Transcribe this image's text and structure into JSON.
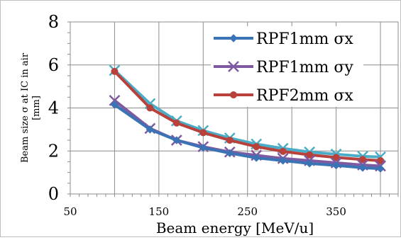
{
  "chart_data": {
    "type": "line",
    "xlabel": "Beam energy [MeV/u]",
    "ylabel": "Beam size  σ  at IC in air [mm]",
    "xlim": [
      50,
      420
    ],
    "ylim": [
      0,
      8
    ],
    "x_ticks": [
      50,
      150,
      250,
      350
    ],
    "y_ticks": [
      0,
      2,
      4,
      6,
      8
    ],
    "grid": true,
    "legend_position": "top-right",
    "x": [
      100,
      140,
      170,
      200,
      230,
      260,
      290,
      320,
      350,
      380,
      400
    ],
    "series": [
      {
        "name": "RPF1mm σx",
        "color": "#3b74b5",
        "marker": "diamond",
        "values": [
          4.15,
          3.0,
          2.5,
          2.15,
          1.9,
          1.68,
          1.55,
          1.42,
          1.33,
          1.22,
          1.18
        ]
      },
      {
        "name": "RPF1mm σy",
        "color": "#7e5aa2",
        "marker": "x",
        "values": [
          4.35,
          3.05,
          2.5,
          2.2,
          1.95,
          1.8,
          1.65,
          1.55,
          1.45,
          1.35,
          1.3
        ]
      },
      {
        "name": "RPF2mm σx",
        "color": "#b8413c",
        "marker": "circle",
        "values": [
          5.7,
          4.0,
          3.3,
          2.85,
          2.5,
          2.2,
          1.98,
          1.82,
          1.7,
          1.6,
          1.55
        ]
      },
      {
        "name": "",
        "color": "#4aacc6",
        "marker": "x",
        "values": [
          5.75,
          4.2,
          3.4,
          2.95,
          2.6,
          2.32,
          2.12,
          1.95,
          1.85,
          1.75,
          1.72
        ]
      }
    ]
  }
}
